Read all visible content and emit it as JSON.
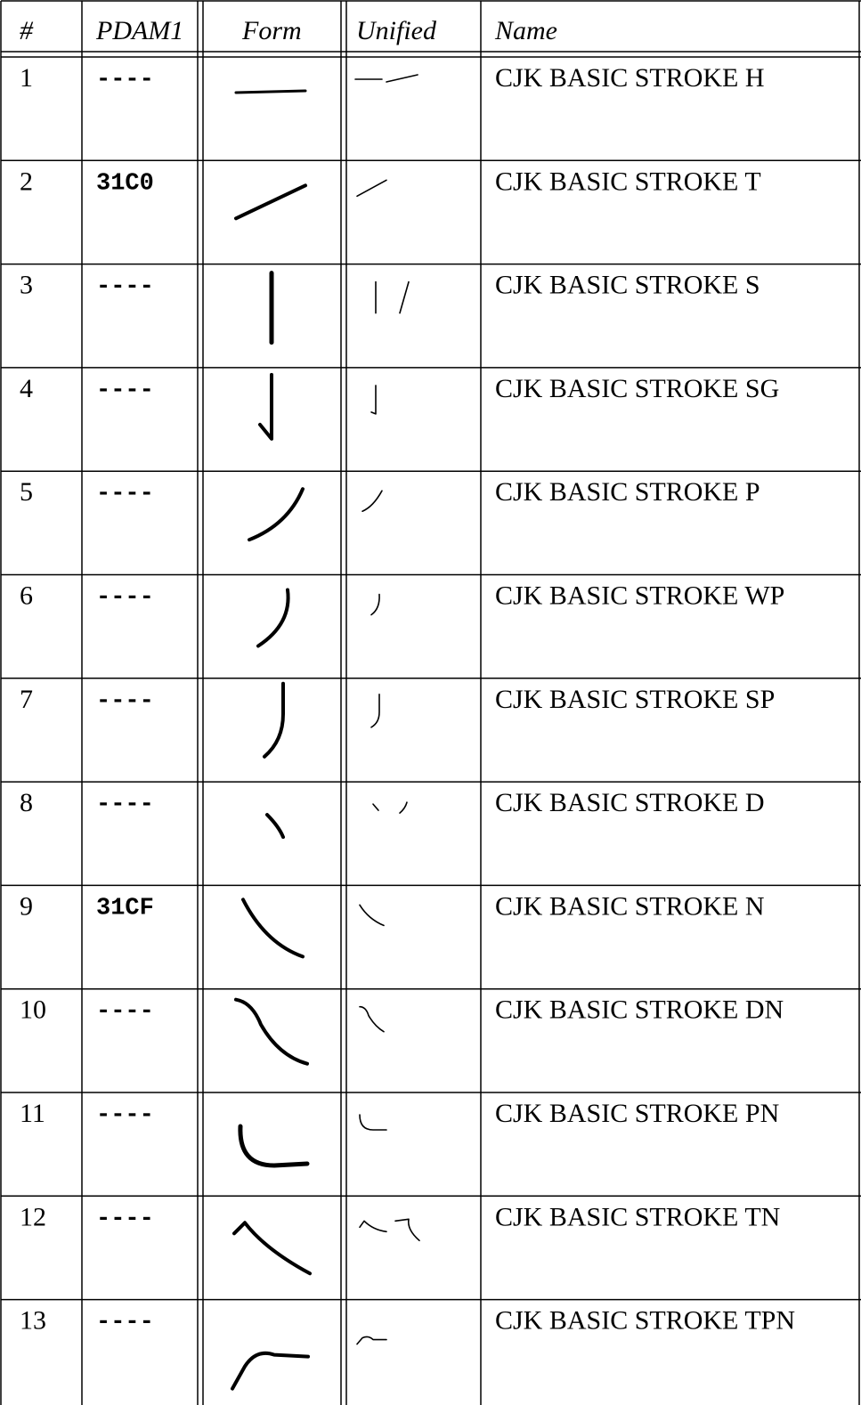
{
  "header": [
    "#",
    "PDAM1",
    "Form",
    "Unified",
    "Name"
  ],
  "rows": [
    [
      "1",
      "----",
      "CJK BASIC STROKE H"
    ],
    [
      "2",
      "31C0",
      "CJK BASIC STROKE T"
    ],
    [
      "3",
      "----",
      "CJK BASIC STROKE S"
    ],
    [
      "4",
      "----",
      "CJK BASIC STROKE SG"
    ],
    [
      "5",
      "----",
      "CJK BASIC STROKE P"
    ],
    [
      "6",
      "----",
      "CJK BASIC STROKE WP"
    ],
    [
      "7",
      "----",
      "CJK BASIC STROKE SP"
    ],
    [
      "8",
      "----",
      "CJK BASIC STROKE D"
    ],
    [
      "9",
      "31CF",
      "CJK BASIC STROKE N"
    ],
    [
      "10",
      "----",
      "CJK BASIC STROKE DN"
    ],
    [
      "11",
      "----",
      "CJK BASIC STROKE PN"
    ],
    [
      "12",
      "----",
      "CJK BASIC STROKE TN"
    ],
    [
      "13",
      "----",
      "CJK BASIC STROKE TPN"
    ]
  ]
}
